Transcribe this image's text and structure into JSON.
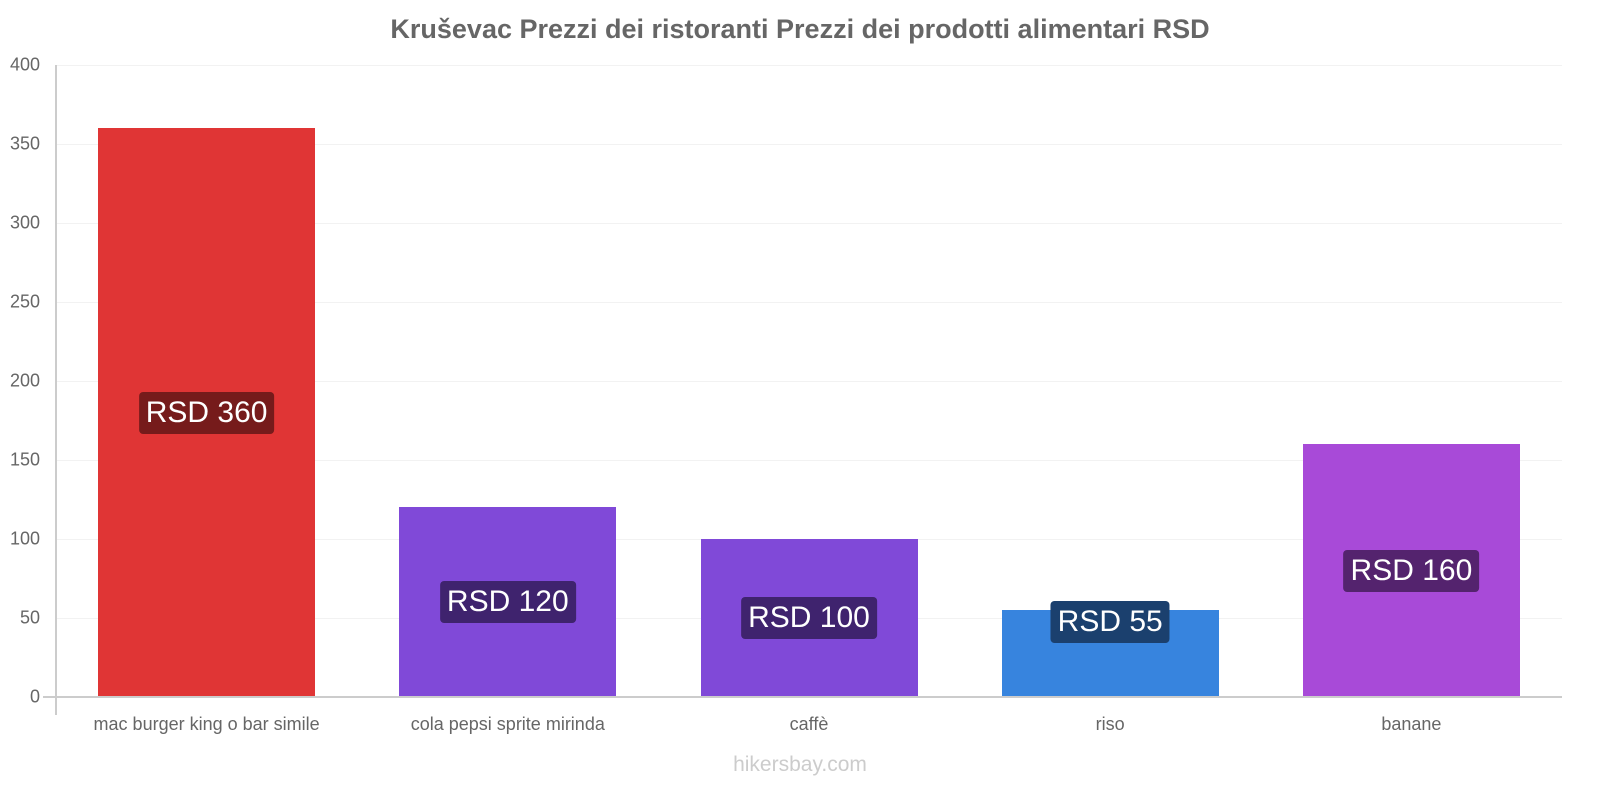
{
  "chart_data": {
    "type": "bar",
    "title": "Kruševac Prezzi dei ristoranti Prezzi dei prodotti alimentari RSD",
    "xlabel": "",
    "ylabel": "",
    "ylim": [
      0,
      400
    ],
    "yticks": [
      "0",
      "50",
      "100",
      "150",
      "200",
      "250",
      "300",
      "350",
      "400"
    ],
    "grid": true,
    "legend": "none",
    "categories": [
      "mac burger king o bar simile",
      "cola pepsi sprite mirinda",
      "caffè",
      "riso",
      "banane"
    ],
    "values": [
      360,
      120,
      100,
      55,
      160
    ],
    "data_labels": [
      "RSD 360",
      "RSD 120",
      "RSD 100",
      "RSD 55",
      "RSD 160"
    ],
    "colors": [
      "#e03535",
      "#8049d8",
      "#8049d8",
      "#3784de",
      "#a84ad8"
    ],
    "label_colors": [
      "#761b1b",
      "#3f236e",
      "#3f236e",
      "#1b406e",
      "#54236e"
    ]
  },
  "footer": {
    "watermark": "hikersbay.com"
  }
}
